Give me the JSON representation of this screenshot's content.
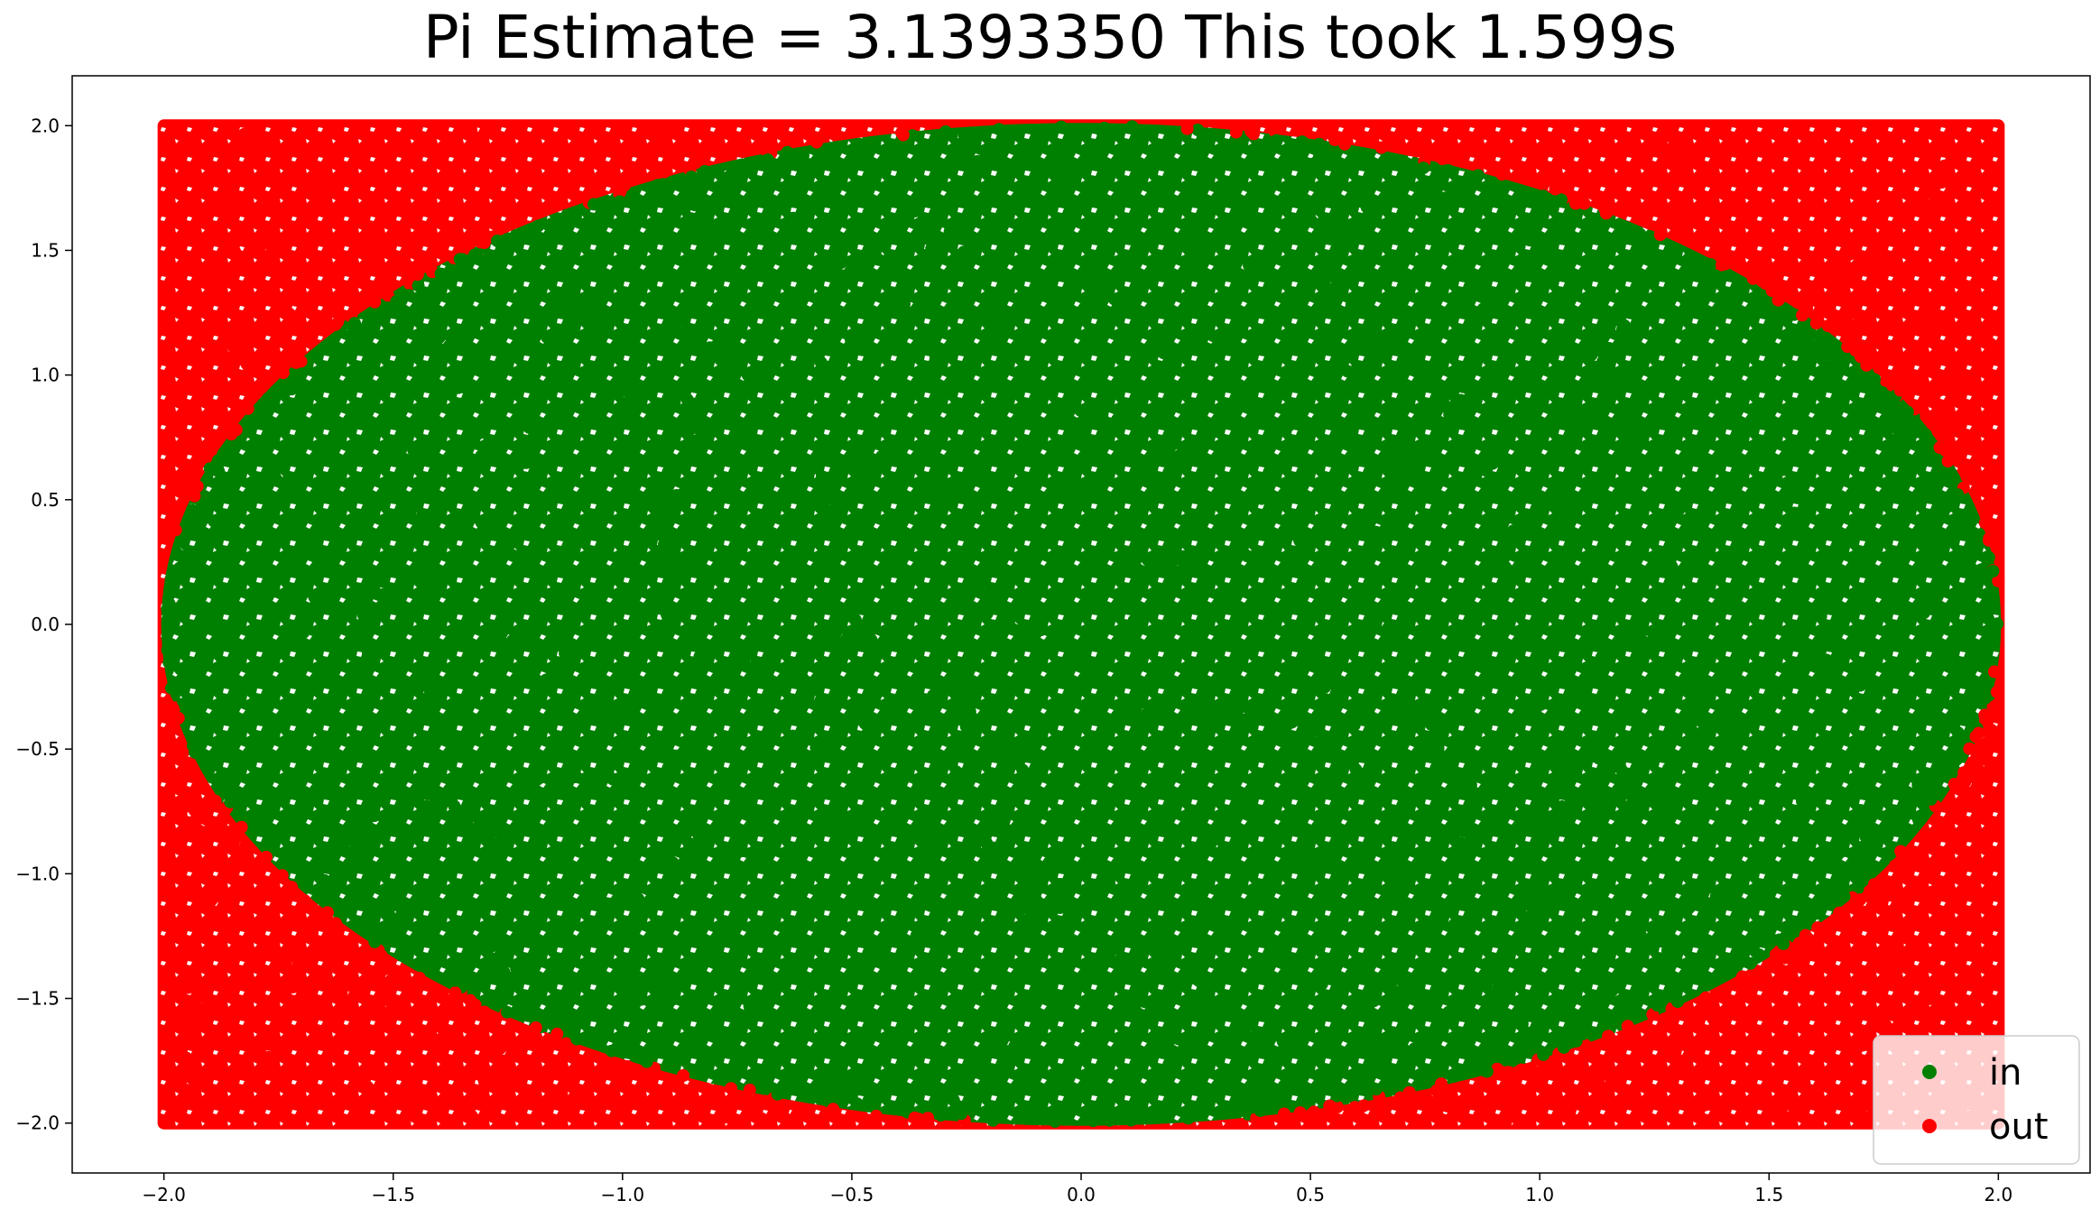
{
  "chart_data": {
    "type": "scatter",
    "title": "Pi Estimate = 3.1393350 This took 1.599s",
    "xlabel": "",
    "ylabel": "",
    "xlim": [
      -2.2,
      2.2
    ],
    "ylim": [
      -2.2,
      2.2
    ],
    "xticks": [
      -2.0,
      -1.5,
      -1.0,
      -0.5,
      0.0,
      0.5,
      1.0,
      1.5,
      2.0
    ],
    "yticks": [
      -2.0,
      -1.5,
      -1.0,
      -0.5,
      0.0,
      0.5,
      1.0,
      1.5,
      2.0
    ],
    "xtick_labels": [
      "−2.0",
      "−1.5",
      "−1.0",
      "−0.5",
      "0.0",
      "0.5",
      "1.0",
      "1.5",
      "2.0"
    ],
    "ytick_labels": [
      "−2.0",
      "−1.5",
      "−1.0",
      "−0.5",
      "0.0",
      "0.5",
      "1.0",
      "1.5",
      "2.0"
    ],
    "grid": false,
    "legend_position": "lower-right",
    "sampling_region": {
      "x": [
        -2.0,
        2.0
      ],
      "y": [
        -2.0,
        2.0
      ]
    },
    "series": [
      {
        "name": "in",
        "color": "#008000",
        "region": "inside circle x²+y² ≤ 4"
      },
      {
        "name": "out",
        "color": "#ff0000",
        "region": "outside circle x²+y² > 4"
      }
    ]
  }
}
